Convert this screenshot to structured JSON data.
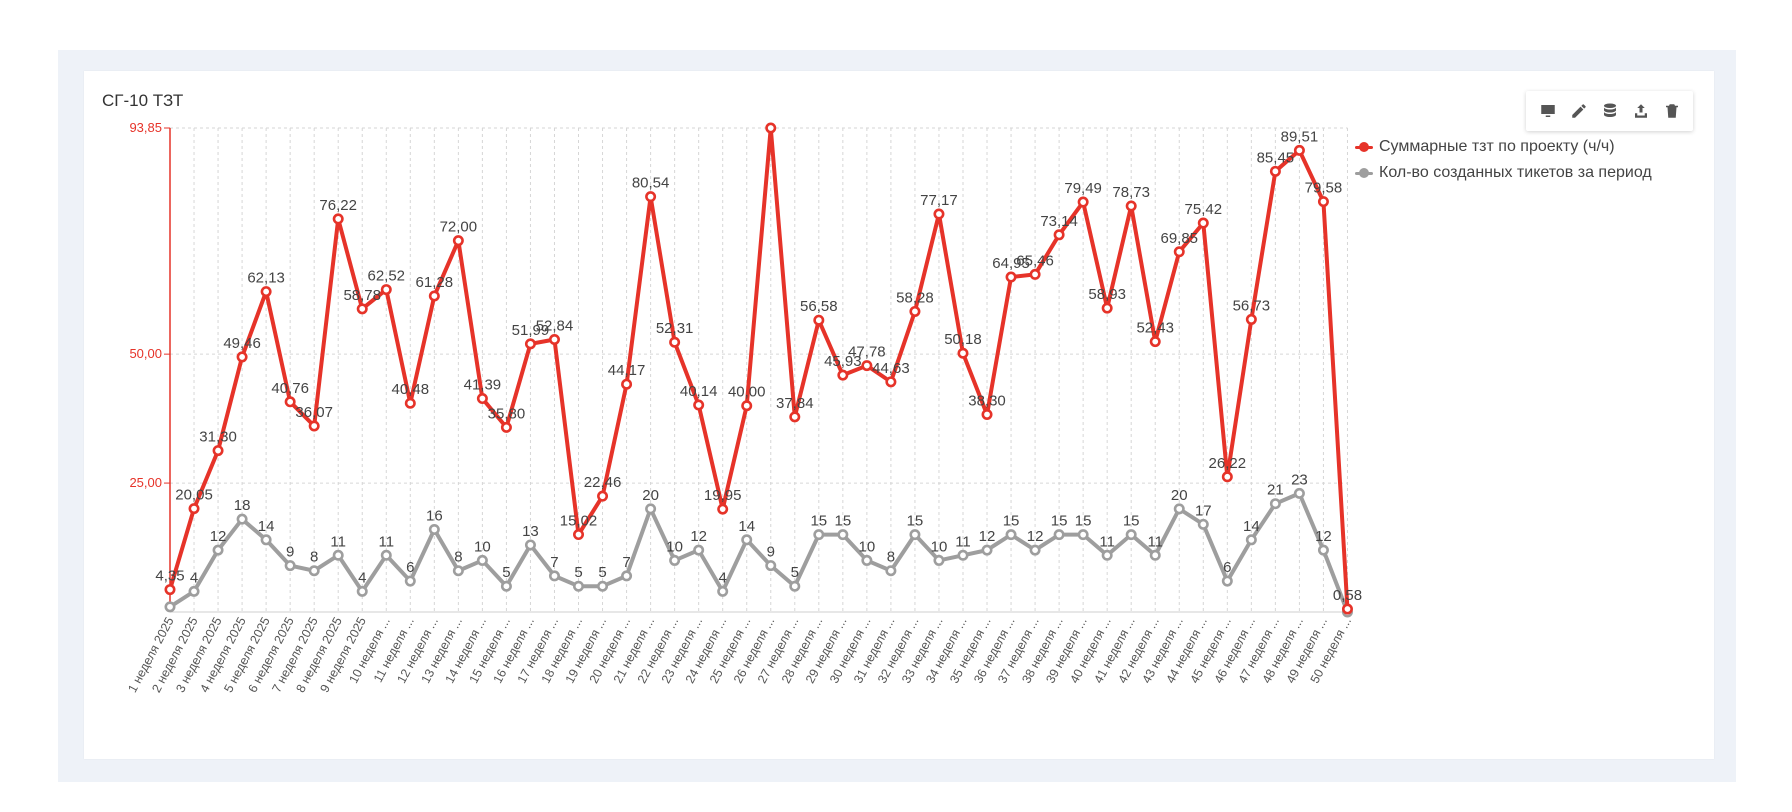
{
  "title": "СГ-10 ТЗТ",
  "toolbar": [
    {
      "name": "monitor-icon"
    },
    {
      "name": "pencil-icon"
    },
    {
      "name": "database-icon"
    },
    {
      "name": "upload-icon"
    },
    {
      "name": "trash-icon"
    }
  ],
  "chart_data": {
    "type": "line",
    "categories": [
      "1 неделя 2025",
      "2 неделя 2025",
      "3 неделя 2025",
      "4 неделя 2025",
      "5 неделя 2025",
      "6 неделя 2025",
      "7 неделя 2025",
      "8 неделя 2025",
      "9 неделя 2025",
      "10 неделя ...",
      "11 неделя ...",
      "12 неделя ...",
      "13 неделя ...",
      "14 неделя ...",
      "15 неделя ...",
      "16 неделя ...",
      "17 неделя ...",
      "18 неделя ...",
      "19 неделя ...",
      "20 неделя ...",
      "21 неделя ...",
      "22 неделя ...",
      "23 неделя ...",
      "24 неделя ...",
      "25 неделя ...",
      "26 неделя ...",
      "27 неделя ...",
      "28 неделя ...",
      "29 неделя ...",
      "30 неделя ...",
      "31 неделя ...",
      "32 неделя ...",
      "33 неделя ...",
      "34 неделя ...",
      "35 неделя ...",
      "36 неделя ...",
      "37 неделя ...",
      "38 неделя ...",
      "39 неделя ...",
      "40 неделя ...",
      "41 неделя ...",
      "42 неделя ...",
      "43 неделя ...",
      "44 неделя ...",
      "45 неделя ...",
      "46 неделя ...",
      "47 неделя ...",
      "48 неделя ...",
      "49 неделя ...",
      "50 неделя ..."
    ],
    "series": [
      {
        "name": "Суммарные тзт по проекту (ч/ч)",
        "color": "#e63329",
        "values": [
          4.35,
          20.05,
          31.3,
          49.46,
          62.13,
          40.76,
          36.07,
          76.22,
          58.78,
          62.52,
          40.48,
          61.28,
          72.0,
          41.39,
          35.8,
          51.99,
          52.84,
          15.02,
          22.46,
          44.17,
          80.54,
          52.31,
          40.14,
          19.95,
          40.0,
          93.85,
          37.84,
          56.58,
          45.93,
          47.78,
          44.63,
          58.28,
          77.17,
          50.18,
          38.3,
          64.95,
          65.46,
          73.14,
          79.49,
          58.93,
          78.73,
          52.43,
          69.85,
          75.42,
          26.22,
          56.73,
          85.45,
          89.51,
          79.58,
          0.58
        ],
        "labels": [
          "4,35",
          "20,05",
          "31,30",
          "49,46",
          "62,13",
          "40,76",
          "36,07",
          "76,22",
          "58,78",
          "62,52",
          "40,48",
          "61,28",
          "72,00",
          "41,39",
          "35,80",
          "51,99",
          "52,84",
          "15,02",
          "22,46",
          "44,17",
          "80,54",
          "52,31",
          "40,14",
          "19,95",
          "40,00",
          "",
          "37,84",
          "56,58",
          "45,93",
          "47,78",
          "44,63",
          "58,28",
          "77,17",
          "50,18",
          "38,30",
          "64,95",
          "65,46",
          "73,14",
          "79,49",
          "58,93",
          "78,73",
          "52,43",
          "69,85",
          "75,42",
          "26,22",
          "56,73",
          "85,45",
          "89,51",
          "79,58",
          "0,58"
        ]
      },
      {
        "name": "Кол-во созданных тикетов за период",
        "color": "#9e9e9e",
        "values": [
          1,
          4,
          12,
          18,
          14,
          9,
          8,
          11,
          4,
          11,
          6,
          16,
          8,
          10,
          5,
          13,
          7,
          5,
          5,
          7,
          20,
          10,
          12,
          4,
          14,
          9,
          5,
          15,
          15,
          10,
          8,
          15,
          10,
          11,
          12,
          15,
          12,
          15,
          15,
          11,
          15,
          11,
          20,
          17,
          6,
          14,
          21,
          23,
          12,
          0
        ],
        "labels": [
          "",
          "4",
          "12",
          "18",
          "14",
          "9",
          "8",
          "11",
          "4",
          "11",
          "6",
          "16",
          "8",
          "10",
          "5",
          "13",
          "7",
          "5",
          "5",
          "7",
          "20",
          "10",
          "12",
          "4",
          "14",
          "9",
          "5",
          "15",
          "15",
          "10",
          "8",
          "15",
          "10",
          "11",
          "12",
          "15",
          "12",
          "15",
          "15",
          "11",
          "15",
          "11",
          "20",
          "17",
          "6",
          "14",
          "21",
          "23",
          "12",
          ""
        ]
      }
    ],
    "y_ticks": [
      {
        "value": 25,
        "label": "25,00"
      },
      {
        "value": 50,
        "label": "50,00"
      },
      {
        "value": 93.85,
        "label": "93,85"
      }
    ],
    "ylim": [
      0,
      93.85
    ],
    "grid": true,
    "legend_position": "top-right"
  }
}
